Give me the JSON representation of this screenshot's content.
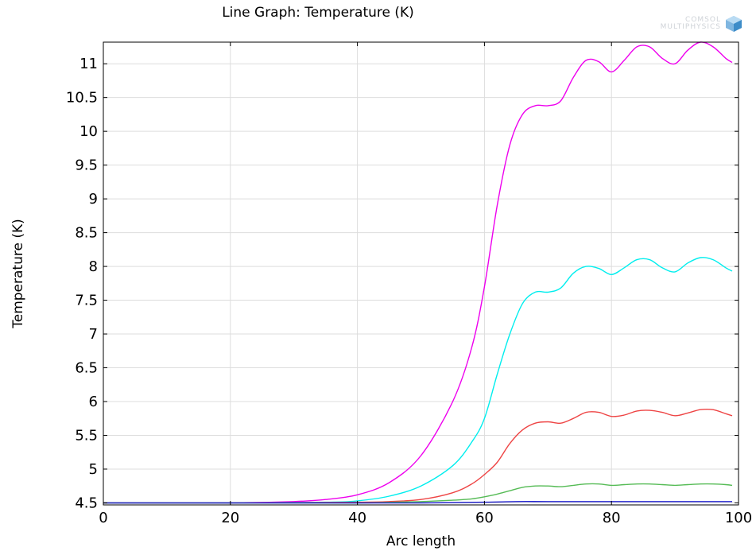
{
  "chart_data": {
    "type": "line",
    "title": "Line Graph: Temperature (K)",
    "xlabel": "Arc length",
    "ylabel": "Temperature (K)",
    "xlim": [
      0,
      100
    ],
    "ylim": [
      4.47,
      11.32
    ],
    "grid": true,
    "xticks": [
      0,
      20,
      40,
      60,
      80,
      100
    ],
    "xtick_labels": [
      "0",
      "20",
      "40",
      "60",
      "80",
      "100"
    ],
    "yticks": [
      4.5,
      5,
      5.5,
      6,
      6.5,
      7,
      7.5,
      8,
      8.5,
      9,
      9.5,
      10,
      10.5,
      11
    ],
    "ytick_labels": [
      "4.5",
      "5",
      "5.5",
      "6",
      "6.5",
      "7",
      "7.5",
      "8",
      "8.5",
      "9",
      "9.5",
      "10",
      "10.5",
      "11"
    ],
    "series": [
      {
        "color": "#ee00ee",
        "x": [
          0,
          20,
          30,
          35,
          40,
          45,
          50,
          55,
          58,
          60,
          62,
          64,
          66,
          68,
          70,
          72,
          74,
          76,
          78,
          80,
          82,
          84,
          86,
          88,
          90,
          92,
          94,
          96,
          98,
          99
        ],
        "y": [
          4.5,
          4.5,
          4.52,
          4.55,
          4.62,
          4.8,
          5.2,
          6.0,
          6.8,
          7.7,
          8.9,
          9.8,
          10.25,
          10.38,
          10.38,
          10.45,
          10.8,
          11.05,
          11.03,
          10.88,
          11.05,
          11.25,
          11.25,
          11.08,
          11.0,
          11.2,
          11.32,
          11.25,
          11.08,
          11.02
        ]
      },
      {
        "color": "#00eeee",
        "x": [
          0,
          20,
          35,
          40,
          45,
          50,
          55,
          58,
          60,
          62,
          64,
          66,
          68,
          70,
          72,
          74,
          76,
          78,
          80,
          82,
          84,
          86,
          88,
          90,
          92,
          94,
          96,
          98,
          99
        ],
        "y": [
          4.5,
          4.5,
          4.51,
          4.53,
          4.6,
          4.75,
          5.05,
          5.4,
          5.75,
          6.4,
          7.0,
          7.45,
          7.62,
          7.62,
          7.68,
          7.9,
          8.0,
          7.97,
          7.88,
          7.98,
          8.1,
          8.1,
          7.98,
          7.92,
          8.05,
          8.13,
          8.1,
          7.98,
          7.93
        ]
      },
      {
        "color": "#ee4444",
        "x": [
          0,
          20,
          40,
          45,
          50,
          55,
          58,
          60,
          62,
          64,
          66,
          68,
          70,
          72,
          74,
          76,
          78,
          80,
          82,
          84,
          86,
          88,
          90,
          92,
          94,
          96,
          98,
          99
        ],
        "y": [
          4.5,
          4.5,
          4.51,
          4.52,
          4.55,
          4.65,
          4.78,
          4.92,
          5.1,
          5.38,
          5.58,
          5.68,
          5.7,
          5.68,
          5.75,
          5.84,
          5.84,
          5.78,
          5.8,
          5.86,
          5.87,
          5.84,
          5.79,
          5.83,
          5.88,
          5.88,
          5.82,
          5.79
        ]
      },
      {
        "color": "#55bb55",
        "x": [
          0,
          20,
          40,
          50,
          55,
          58,
          60,
          62,
          64,
          66,
          68,
          70,
          72,
          74,
          76,
          78,
          80,
          82,
          84,
          86,
          88,
          90,
          92,
          94,
          96,
          98,
          99
        ],
        "y": [
          4.5,
          4.5,
          4.5,
          4.52,
          4.54,
          4.56,
          4.59,
          4.63,
          4.68,
          4.73,
          4.75,
          4.75,
          4.74,
          4.76,
          4.78,
          4.78,
          4.76,
          4.77,
          4.78,
          4.78,
          4.77,
          4.76,
          4.77,
          4.78,
          4.78,
          4.77,
          4.76
        ]
      },
      {
        "color": "#2222cc",
        "x": [
          0,
          20,
          40,
          50,
          60,
          65,
          70,
          80,
          90,
          99
        ],
        "y": [
          4.5,
          4.5,
          4.5,
          4.5,
          4.51,
          4.52,
          4.52,
          4.52,
          4.52,
          4.52
        ]
      }
    ]
  },
  "logo": {
    "line1": "COMSOL",
    "line2": "MULTIPHYSICS"
  }
}
